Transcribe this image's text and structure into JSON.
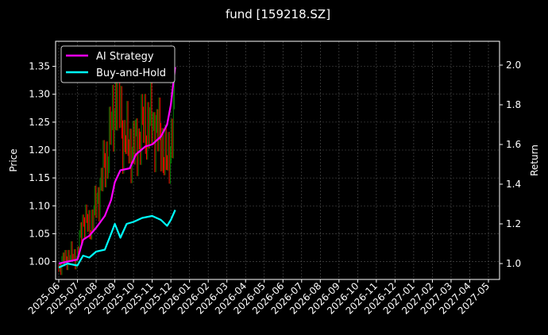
{
  "chart_data": {
    "type": "line",
    "title": "fund [159218.SZ]",
    "ylabel_left": "Price",
    "ylabel_right": "Return",
    "ylim_left": [
      0.968,
      1.395
    ],
    "ylim_right": [
      0.92,
      2.12
    ],
    "left_ticks": [
      "1.00",
      "1.05",
      "1.10",
      "1.15",
      "1.20",
      "1.25",
      "1.30",
      "1.35"
    ],
    "right_ticks": [
      "1.0",
      "1.2",
      "1.4",
      "1.6",
      "1.8",
      "2.0"
    ],
    "x_tick_labels": [
      "2025-06",
      "2025-07",
      "2025-08",
      "2025-09",
      "2025-10",
      "2025-11",
      "2025-12",
      "2026-01",
      "2026-02",
      "2026-03",
      "2026-04",
      "2026-05",
      "2026-06",
      "2026-07",
      "2026-08",
      "2026-09",
      "2026-10",
      "2026-11",
      "2026-12",
      "2027-01",
      "2027-02",
      "2027-03",
      "2027-04",
      "2027-05"
    ],
    "grid": true,
    "legend_position": "top-left",
    "series": [
      {
        "name": "AI Strategy",
        "color": "#ff00ff",
        "axis": "right",
        "x": [
          "2025-06-01",
          "2025-06-15",
          "2025-07-01",
          "2025-07-10",
          "2025-07-20",
          "2025-08-01",
          "2025-08-15",
          "2025-08-25",
          "2025-09-01",
          "2025-09-10",
          "2025-09-25",
          "2025-10-05",
          "2025-10-20",
          "2025-11-01",
          "2025-11-15",
          "2025-11-25",
          "2025-12-01",
          "2025-12-08"
        ],
        "values": [
          1.0,
          1.01,
          1.02,
          1.12,
          1.14,
          1.18,
          1.24,
          1.32,
          1.41,
          1.47,
          1.48,
          1.55,
          1.59,
          1.6,
          1.64,
          1.7,
          1.8,
          1.99
        ]
      },
      {
        "name": "Buy-and-Hold",
        "color": "#00ffff",
        "axis": "right",
        "x": [
          "2025-06-01",
          "2025-06-15",
          "2025-07-01",
          "2025-07-10",
          "2025-07-20",
          "2025-08-01",
          "2025-08-15",
          "2025-08-25",
          "2025-09-01",
          "2025-09-10",
          "2025-09-20",
          "2025-10-01",
          "2025-10-15",
          "2025-11-01",
          "2025-11-15",
          "2025-11-25",
          "2025-12-01",
          "2025-12-08"
        ],
        "values": [
          0.98,
          1.0,
          0.99,
          1.04,
          1.03,
          1.06,
          1.07,
          1.15,
          1.2,
          1.13,
          1.2,
          1.21,
          1.23,
          1.24,
          1.22,
          1.19,
          1.22,
          1.27
        ]
      }
    ],
    "price_candles": {
      "axis": "left",
      "up_color": "#008000",
      "down_color": "#ff0000",
      "x": [
        "2025-06-01",
        "2025-06-15",
        "2025-07-01",
        "2025-07-10",
        "2025-07-20",
        "2025-08-01",
        "2025-08-10",
        "2025-08-20",
        "2025-09-01",
        "2025-09-05",
        "2025-09-15",
        "2025-10-01",
        "2025-10-15",
        "2025-11-01",
        "2025-11-15",
        "2025-11-25",
        "2025-12-01",
        "2025-12-08"
      ],
      "values": [
        0.99,
        1.01,
        1.01,
        1.08,
        1.06,
        1.1,
        1.15,
        1.2,
        1.28,
        1.32,
        1.22,
        1.2,
        1.24,
        1.25,
        1.22,
        1.17,
        1.22,
        1.28
      ]
    }
  }
}
